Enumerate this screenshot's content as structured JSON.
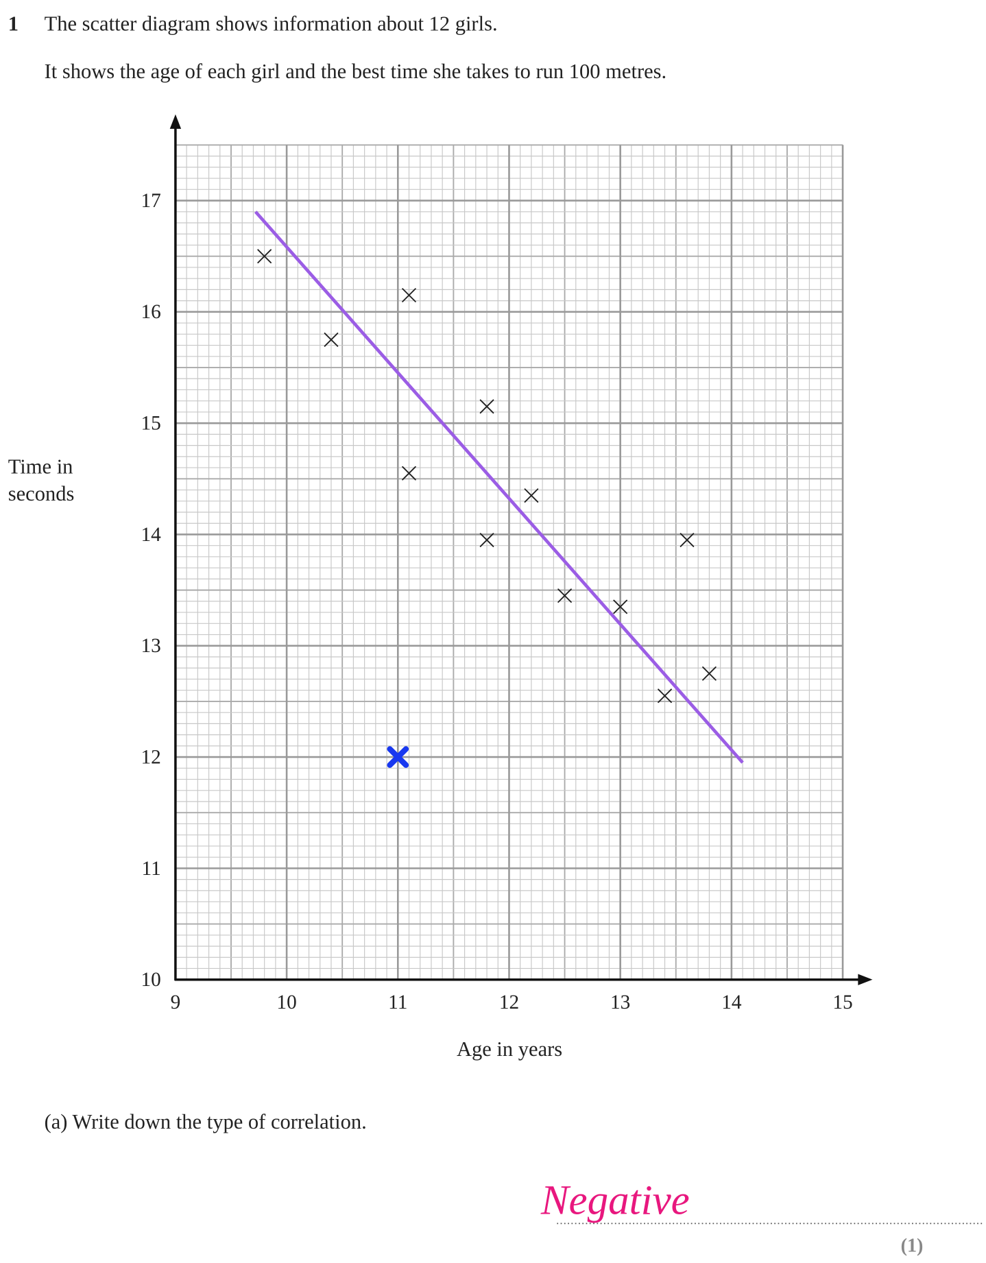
{
  "question": {
    "number": "1",
    "lines": [
      "The scatter diagram shows information about 12 girls.",
      "It shows the age of each girl and the best time she takes to run 100 metres."
    ],
    "part_a": "(a)  Write down the type of correlation.",
    "answer": "Negative",
    "marks": "(1)"
  },
  "chart_data": {
    "type": "scatter",
    "ylabel_lines": [
      "Time in",
      "seconds"
    ],
    "xlabel": "Age in years",
    "x": [
      9.8,
      10.4,
      11.1,
      11.8,
      11.1,
      11.8,
      12.2,
      12.5,
      13,
      13.6,
      13.4,
      13.8
    ],
    "values": [
      16.5,
      15.75,
      16.15,
      15.15,
      14.55,
      13.95,
      14.35,
      13.45,
      13.35,
      13.95,
      12.55,
      12.75
    ],
    "color": "#222222",
    "xlim": [
      9,
      15
    ],
    "ylim": [
      10,
      17.5
    ],
    "xticks": [
      9,
      10,
      11,
      12,
      13,
      14,
      15
    ],
    "yticks": [
      10,
      11,
      12,
      13,
      14,
      15,
      16,
      17
    ],
    "grid": true,
    "trend_line": {
      "x": [
        9.72,
        14.1
      ],
      "values": [
        16.9,
        11.95
      ],
      "color": "#9b5de5"
    },
    "marked_point": {
      "x": 11,
      "value": 12,
      "color": "#1838f0"
    }
  }
}
